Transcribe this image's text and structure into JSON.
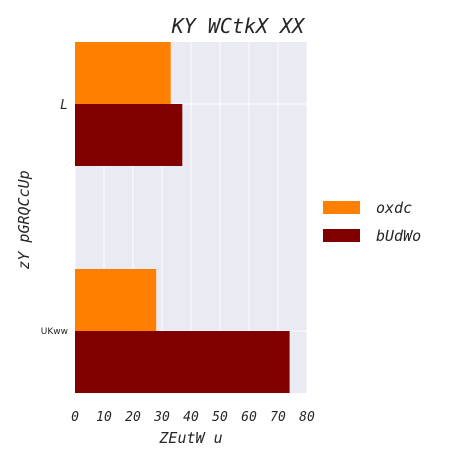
{
  "chart_data": {
    "type": "bar",
    "orientation": "horizontal",
    "title": "KY WCtkX XX",
    "xlabel": "ZEutW u",
    "ylabel": "zY pGRQCcUp",
    "categories": [
      "L",
      "UKww"
    ],
    "series": [
      {
        "name": "oxdc",
        "color": "#ff8000",
        "values": [
          33,
          28
        ]
      },
      {
        "name": "bUdWo",
        "color": "#800000",
        "values": [
          37,
          74
        ]
      }
    ],
    "xlim": [
      0,
      80
    ],
    "xticks": [
      0,
      10,
      20,
      30,
      40,
      50,
      60,
      70,
      80
    ],
    "grid": true,
    "legend_position": "right",
    "style": {
      "plot_background": "#eaeaf2",
      "grid_color": "#ffffff"
    }
  }
}
